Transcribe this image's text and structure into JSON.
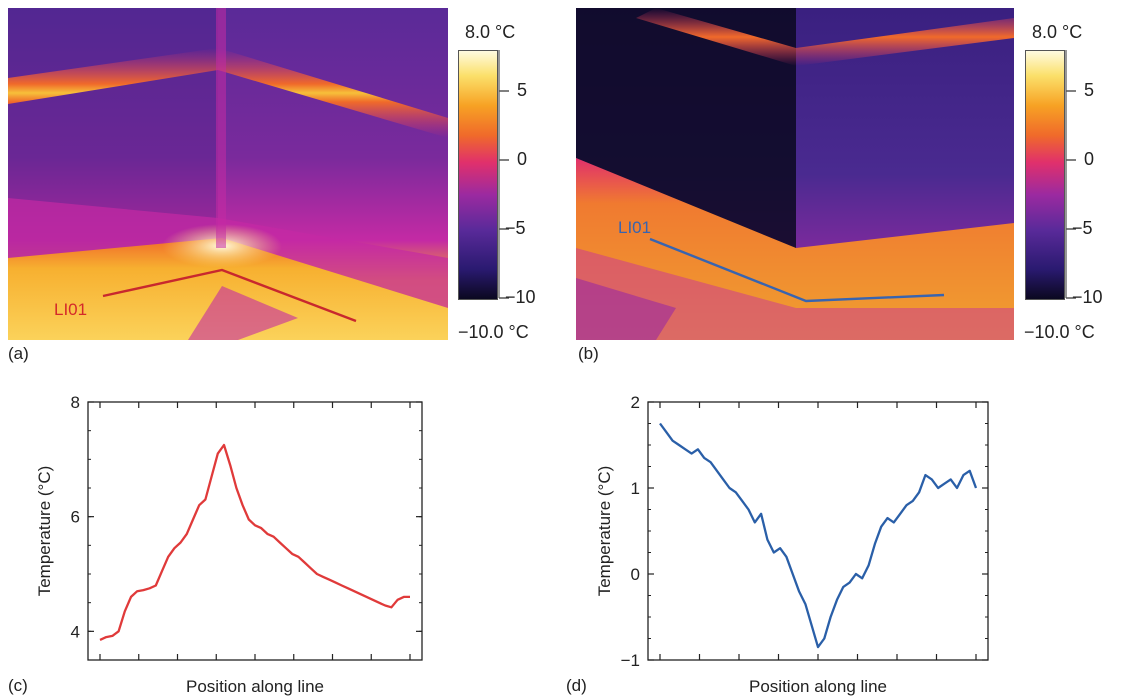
{
  "panels": {
    "a": "(a)",
    "b": "(b)",
    "c": "(c)",
    "d": "(d)"
  },
  "thermal_images": {
    "a": {
      "line_label": "LI01",
      "line_color": "#d42a2a"
    },
    "b": {
      "line_label": "LI01",
      "line_color": "#3864b0"
    }
  },
  "colorbar": {
    "max_label": "8.0 °C",
    "min_label": "−10.0 °C",
    "ticks": [
      "5",
      "0",
      "−5",
      "−10"
    ],
    "tick_values": [
      5,
      0,
      -5,
      -10
    ],
    "range": [
      -10,
      8
    ],
    "colormap": [
      "#0b0820",
      "#2a1a70",
      "#5a2a9a",
      "#9b2aa0",
      "#e0306c",
      "#f06a2a",
      "#f7a224",
      "#fbe06a",
      "#fffbe0"
    ]
  },
  "chart_data": [
    {
      "type": "line",
      "panel": "(c)",
      "xlabel": "Position along line",
      "ylabel": "Temperature (°C)",
      "ylim": [
        3.5,
        8
      ],
      "yticks": [
        4,
        6,
        8
      ],
      "series": [
        {
          "color": "#e03a3a",
          "x": [
            0.0,
            0.02,
            0.04,
            0.06,
            0.08,
            0.1,
            0.12,
            0.14,
            0.16,
            0.18,
            0.2,
            0.22,
            0.24,
            0.26,
            0.28,
            0.3,
            0.32,
            0.34,
            0.36,
            0.38,
            0.4,
            0.42,
            0.44,
            0.46,
            0.48,
            0.5,
            0.52,
            0.54,
            0.56,
            0.58,
            0.6,
            0.62,
            0.64,
            0.66,
            0.68,
            0.7,
            0.72,
            0.74,
            0.76,
            0.78,
            0.8,
            0.82,
            0.84,
            0.86,
            0.88,
            0.9,
            0.92,
            0.94,
            0.96,
            0.98,
            1.0
          ],
          "y": [
            3.85,
            3.9,
            3.92,
            4.0,
            4.35,
            4.6,
            4.7,
            4.72,
            4.75,
            4.8,
            5.05,
            5.3,
            5.45,
            5.55,
            5.7,
            5.95,
            6.2,
            6.3,
            6.7,
            7.1,
            7.25,
            6.9,
            6.5,
            6.2,
            5.95,
            5.85,
            5.8,
            5.7,
            5.65,
            5.55,
            5.45,
            5.35,
            5.3,
            5.2,
            5.1,
            5.0,
            4.95,
            4.9,
            4.85,
            4.8,
            4.75,
            4.7,
            4.65,
            4.6,
            4.55,
            4.5,
            4.45,
            4.42,
            4.55,
            4.6,
            4.6
          ]
        }
      ]
    },
    {
      "type": "line",
      "panel": "(d)",
      "xlabel": "Position along line",
      "ylabel": "Temperature (°C)",
      "ylim": [
        -1,
        2
      ],
      "yticks": [
        -1,
        0,
        1,
        2
      ],
      "series": [
        {
          "color": "#2a5fa8",
          "x": [
            0.0,
            0.02,
            0.04,
            0.06,
            0.08,
            0.1,
            0.12,
            0.14,
            0.16,
            0.18,
            0.2,
            0.22,
            0.24,
            0.26,
            0.28,
            0.3,
            0.32,
            0.34,
            0.36,
            0.38,
            0.4,
            0.42,
            0.44,
            0.46,
            0.48,
            0.5,
            0.52,
            0.54,
            0.56,
            0.58,
            0.6,
            0.62,
            0.64,
            0.66,
            0.68,
            0.7,
            0.72,
            0.74,
            0.76,
            0.78,
            0.8,
            0.82,
            0.84,
            0.86,
            0.88,
            0.9,
            0.92,
            0.94,
            0.96,
            0.98,
            1.0
          ],
          "y": [
            1.75,
            1.65,
            1.55,
            1.5,
            1.45,
            1.4,
            1.45,
            1.35,
            1.3,
            1.2,
            1.1,
            1.0,
            0.95,
            0.85,
            0.75,
            0.6,
            0.7,
            0.4,
            0.25,
            0.3,
            0.2,
            0.0,
            -0.2,
            -0.35,
            -0.6,
            -0.85,
            -0.75,
            -0.5,
            -0.3,
            -0.15,
            -0.1,
            0.0,
            -0.05,
            0.1,
            0.35,
            0.55,
            0.65,
            0.6,
            0.7,
            0.8,
            0.85,
            0.95,
            1.15,
            1.1,
            1.0,
            1.05,
            1.1,
            1.0,
            1.15,
            1.2,
            1.0
          ]
        }
      ]
    }
  ]
}
